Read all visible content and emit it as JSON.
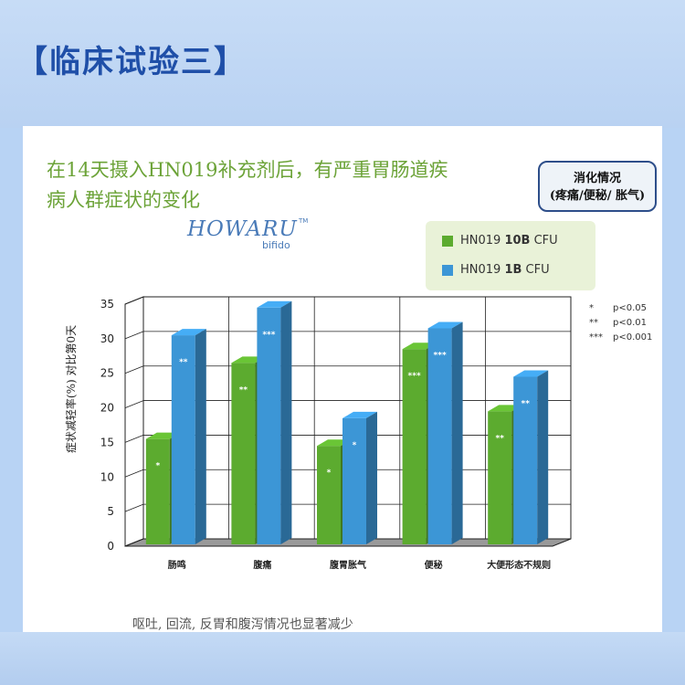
{
  "header": {
    "title": "【临床试验三】"
  },
  "slide": {
    "title_line1": "在14天摄入HN019补充剂后，有严重胃肠道疾",
    "title_line2": "病人群症状的变化",
    "logo_main": "HOWARU",
    "logo_tm": "TM",
    "logo_sub": "bifido",
    "box_line1": "消化情况",
    "box_line2": "(疼痛/便秘/ 胀气)",
    "footer": "呕吐, 回流, 反胃和腹泻情况也显著减少"
  },
  "legend": [
    {
      "prefix": "HN019 ",
      "bold": "10B",
      "suffix": " CFU",
      "color": "#5cab2f"
    },
    {
      "prefix": "HN019 ",
      "bold": "1B",
      "suffix": " CFU",
      "color": "#3c96d6"
    }
  ],
  "significance": [
    {
      "symbol": "*",
      "label": "p<0.05"
    },
    {
      "symbol": "**",
      "label": "p<0.01"
    },
    {
      "symbol": "***",
      "label": "p<0.001"
    }
  ],
  "chart_data": {
    "type": "bar",
    "categories": [
      "肠鸣",
      "腹痛",
      "腹胃胀气",
      "便秘",
      "大便形态不规则"
    ],
    "series": [
      {
        "name": "HN019 10B CFU",
        "values": [
          15.5,
          26.5,
          14.5,
          28.5,
          19.5
        ],
        "stars": [
          "*",
          "**",
          "*",
          "***",
          "**"
        ],
        "color": "#5cab2f"
      },
      {
        "name": "HN019 1B CFU",
        "values": [
          30.5,
          34.5,
          18.5,
          31.5,
          24.5
        ],
        "stars": [
          "**",
          "***",
          "*",
          "***",
          "**"
        ],
        "color": "#3c96d6"
      }
    ],
    "ylabel": "症状减轻率(%) 对比第0天",
    "ylim": [
      0,
      35
    ],
    "yticks": [
      "0",
      "5",
      "10",
      "15",
      "20",
      "25",
      "30",
      "35"
    ],
    "grid": true
  }
}
